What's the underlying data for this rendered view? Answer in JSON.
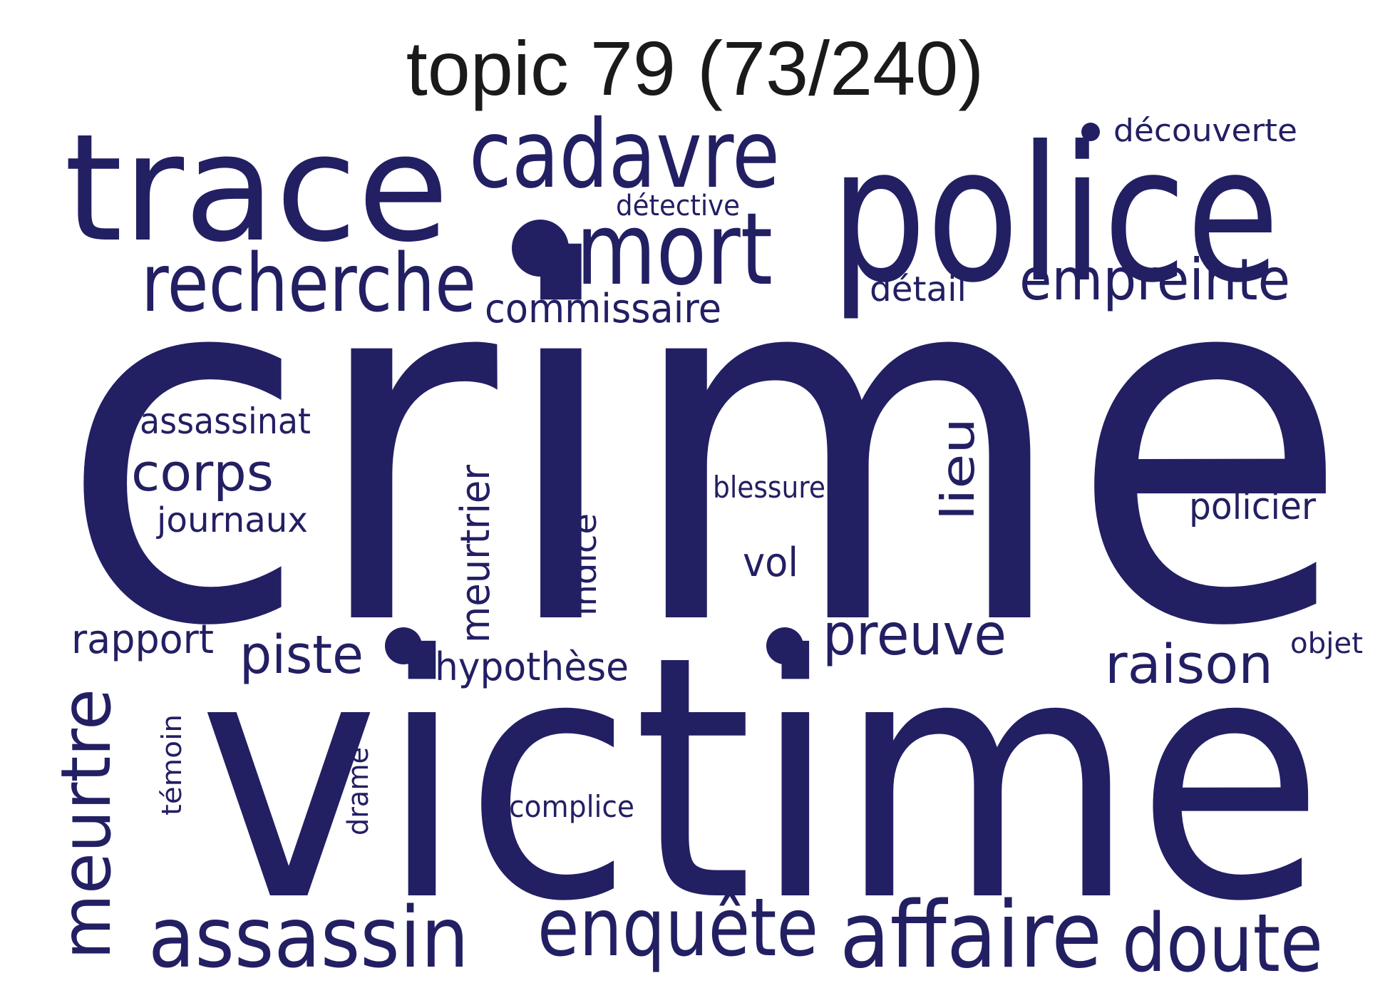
{
  "title": "topic 79 (73/240)",
  "ink_color": "#221f63",
  "title_color": "#1a1a1a",
  "words": [
    {
      "id": "crime",
      "text": "crime"
    },
    {
      "id": "victime",
      "text": "victime"
    },
    {
      "id": "police",
      "text": "police"
    },
    {
      "id": "trace",
      "text": "trace"
    },
    {
      "id": "cadavre",
      "text": "cadavre"
    },
    {
      "id": "mort",
      "text": "mort"
    },
    {
      "id": "recherche",
      "text": "recherche"
    },
    {
      "id": "empreinte",
      "text": "empreinte"
    },
    {
      "id": "commissaire",
      "text": "commissaire"
    },
    {
      "id": "detective",
      "text": "détective"
    },
    {
      "id": "decouverte",
      "text": "découverte"
    },
    {
      "id": "detail",
      "text": "détail"
    },
    {
      "id": "assassinat",
      "text": "assassinat"
    },
    {
      "id": "corps",
      "text": "corps"
    },
    {
      "id": "journaux",
      "text": "journaux"
    },
    {
      "id": "meurtrier",
      "text": "meurtrier"
    },
    {
      "id": "indice",
      "text": "indice"
    },
    {
      "id": "blessure",
      "text": "blessure"
    },
    {
      "id": "vol",
      "text": "vol"
    },
    {
      "id": "lieu",
      "text": "lieu"
    },
    {
      "id": "policier",
      "text": "policier"
    },
    {
      "id": "rapport",
      "text": "rapport"
    },
    {
      "id": "piste",
      "text": "piste"
    },
    {
      "id": "hypothese",
      "text": "hypothèse"
    },
    {
      "id": "preuve",
      "text": "preuve"
    },
    {
      "id": "raison",
      "text": "raison"
    },
    {
      "id": "objet",
      "text": "objet"
    },
    {
      "id": "meurtre",
      "text": "meurtre"
    },
    {
      "id": "temoin",
      "text": "témoin"
    },
    {
      "id": "drame",
      "text": "drame"
    },
    {
      "id": "complice",
      "text": "complice"
    },
    {
      "id": "assassin",
      "text": "assassin"
    },
    {
      "id": "enquete",
      "text": "enquête"
    },
    {
      "id": "affaire",
      "text": "affaire"
    },
    {
      "id": "doute",
      "text": "doute"
    }
  ]
}
